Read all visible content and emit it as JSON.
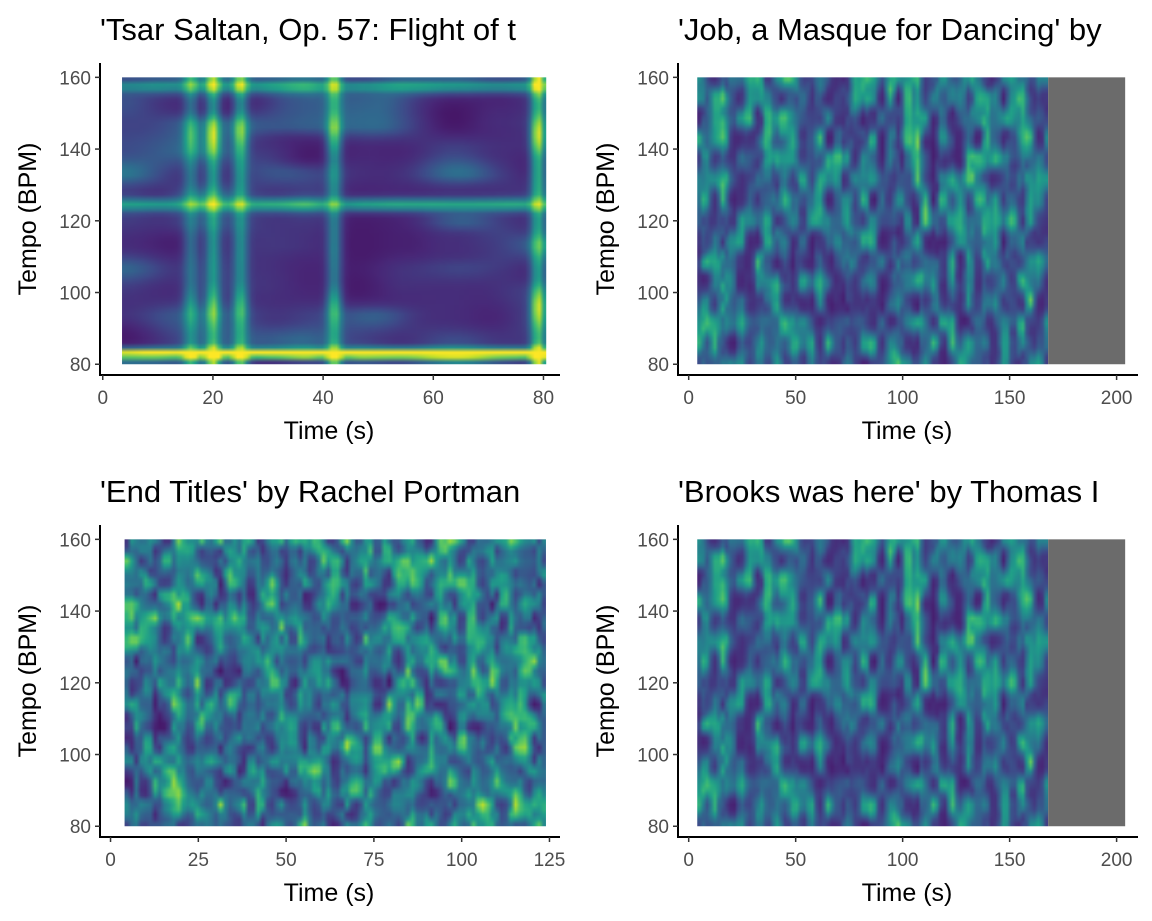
{
  "chart_data": [
    {
      "type": "heatmap",
      "title": "'Tsar Saltan, Op. 57: Flight of t",
      "xlabel": "Time (s)",
      "ylabel": "Tempo (BPM)",
      "xlim": [
        -0.5,
        83
      ],
      "ylim": [
        77,
        164
      ],
      "xticks": [
        "0",
        "20",
        "40",
        "60",
        "80"
      ],
      "yticks": [
        "80",
        "100",
        "120",
        "140",
        "160"
      ],
      "data_x_range": [
        3.5,
        80.5
      ],
      "data_y_range": [
        80,
        160
      ],
      "padded_x_range": null,
      "colorscale": "viridis",
      "pattern": "tempo_lines",
      "features": {
        "horizontal_bands": [
          {
            "tempo": 83,
            "intensity": 0.95
          },
          {
            "tempo": 124.5,
            "intensity": 0.45
          },
          {
            "tempo": 157.5,
            "intensity": 0.4
          }
        ],
        "vertical_bands": [
          {
            "time": 16,
            "intensity": 0.35
          },
          {
            "time": 20,
            "intensity": 0.55
          },
          {
            "time": 25,
            "intensity": 0.5
          },
          {
            "time": 42,
            "intensity": 0.5
          },
          {
            "time": 79,
            "intensity": 0.7
          }
        ]
      },
      "seed": 11
    },
    {
      "type": "heatmap",
      "title": "'Job, a Masque for Dancing' by",
      "xlabel": "Time (s)",
      "ylabel": "Tempo (BPM)",
      "xlim": [
        -5,
        210
      ],
      "ylim": [
        77,
        164
      ],
      "xticks": [
        "0",
        "50",
        "100",
        "150",
        "200"
      ],
      "yticks": [
        "80",
        "100",
        "120",
        "140",
        "160"
      ],
      "data_x_range": [
        4,
        168
      ],
      "data_y_range": [
        80,
        160
      ],
      "padded_x_range": [
        168,
        204
      ],
      "colorscale": "viridis",
      "pattern": "noisy",
      "seed": 23
    },
    {
      "type": "heatmap",
      "title": "'End Titles' by Rachel Portman",
      "xlabel": "Time (s)",
      "ylabel": "Tempo (BPM)",
      "xlim": [
        -3,
        128
      ],
      "ylim": [
        77,
        164
      ],
      "xticks": [
        "0",
        "25",
        "50",
        "75",
        "100",
        "125"
      ],
      "yticks": [
        "80",
        "100",
        "120",
        "140",
        "160"
      ],
      "data_x_range": [
        4,
        124
      ],
      "data_y_range": [
        80,
        160
      ],
      "padded_x_range": null,
      "colorscale": "viridis",
      "pattern": "noisy_bright",
      "seed": 37
    },
    {
      "type": "heatmap",
      "title": "'Brooks was here' by Thomas I",
      "xlabel": "Time (s)",
      "ylabel": "Tempo (BPM)",
      "xlim": [
        -5,
        210
      ],
      "ylim": [
        77,
        164
      ],
      "xticks": [
        "0",
        "50",
        "100",
        "150",
        "200"
      ],
      "yticks": [
        "80",
        "100",
        "120",
        "140",
        "160"
      ],
      "data_x_range": [
        4,
        168
      ],
      "data_y_range": [
        80,
        160
      ],
      "padded_x_range": [
        168,
        204
      ],
      "colorscale": "viridis",
      "pattern": "noisy",
      "seed": 23
    }
  ],
  "colors": {
    "padding_fill": "#6b6b6b",
    "axis": "#000000",
    "tick_label": "#4d4d4d",
    "viridis": [
      "#440154",
      "#482878",
      "#3e4a89",
      "#31688e",
      "#26828e",
      "#1f9e89",
      "#35b779",
      "#6ece58",
      "#b5de2b",
      "#fde725"
    ]
  }
}
